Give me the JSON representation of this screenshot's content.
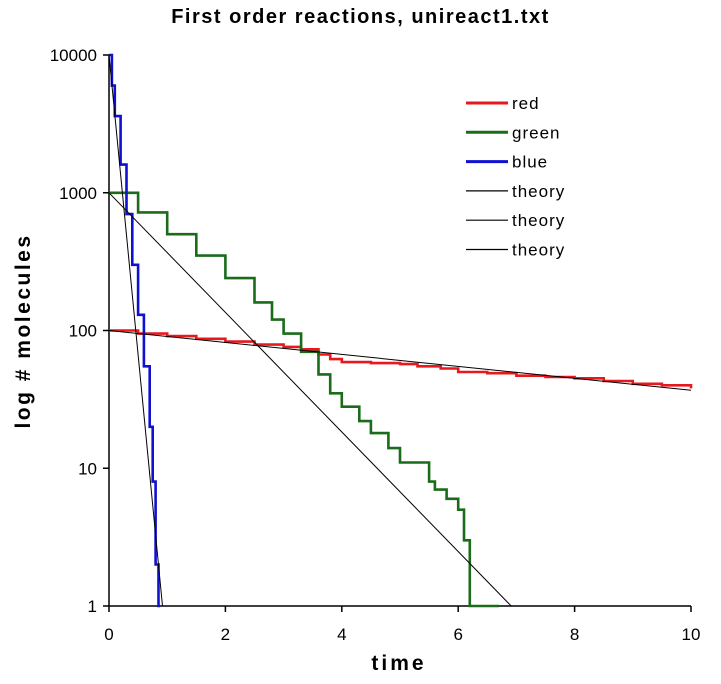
{
  "chart_data": {
    "type": "line",
    "title": "First order reactions, unireact1.txt",
    "xlabel": "time",
    "ylabel": "log # molecules",
    "xlim": [
      0,
      10
    ],
    "ylim": [
      1,
      10000
    ],
    "y_scale": "log",
    "x_ticks": [
      0,
      2,
      4,
      6,
      8,
      10
    ],
    "x_tick_labels": [
      "0",
      "2",
      "4",
      "6",
      "8",
      "10"
    ],
    "y_ticks": [
      1,
      10,
      100,
      1000,
      10000
    ],
    "y_tick_labels": [
      "1",
      "10",
      "100",
      "1000",
      "10000"
    ],
    "grid": false,
    "legend_position": "top-right",
    "series": [
      {
        "name": "red",
        "color": "#e8191e",
        "kind": "simulation",
        "x": [
          0,
          0.5,
          1,
          1.5,
          2,
          2.5,
          3,
          3.3,
          3.6,
          3.8,
          4,
          4.5,
          5,
          5.3,
          5.7,
          6,
          6.5,
          7,
          7.5,
          8,
          8.5,
          9,
          9.5,
          10
        ],
        "y": [
          100,
          95,
          91,
          87,
          83,
          79,
          76,
          73,
          67,
          62,
          59,
          58,
          57,
          55,
          53,
          50,
          49,
          47,
          46,
          45,
          43,
          41,
          40,
          38
        ]
      },
      {
        "name": "green",
        "color": "#1a6b1a",
        "kind": "simulation",
        "x": [
          0,
          0.5,
          1,
          1.5,
          2,
          2.5,
          2.8,
          3,
          3.3,
          3.6,
          3.8,
          4,
          4.3,
          4.5,
          4.8,
          5,
          5.2,
          5.5,
          5.6,
          5.8,
          6,
          6.1,
          6.2,
          6.2,
          6.7
        ],
        "y": [
          1000,
          720,
          500,
          350,
          240,
          160,
          120,
          95,
          70,
          48,
          35,
          28,
          22,
          18,
          14,
          11,
          11,
          8,
          7,
          6,
          5,
          3,
          2,
          1,
          1
        ]
      },
      {
        "name": "blue",
        "color": "#1010d0",
        "kind": "simulation",
        "x": [
          0,
          0.05,
          0.1,
          0.2,
          0.3,
          0.4,
          0.5,
          0.6,
          0.7,
          0.75,
          0.8,
          0.85,
          0.88
        ],
        "y": [
          10000,
          6000,
          3600,
          1600,
          700,
          300,
          130,
          55,
          20,
          8,
          2,
          1,
          1
        ]
      },
      {
        "name": "theory",
        "color": "#000000",
        "kind": "theory",
        "x": [
          0,
          10
        ],
        "y": [
          100,
          36.8
        ]
      },
      {
        "name": "theory",
        "color": "#000000",
        "kind": "theory",
        "x": [
          0,
          6.91
        ],
        "y": [
          1000,
          1
        ]
      },
      {
        "name": "theory",
        "color": "#000000",
        "kind": "theory",
        "x": [
          0,
          0.92
        ],
        "y": [
          10000,
          1
        ]
      }
    ]
  }
}
